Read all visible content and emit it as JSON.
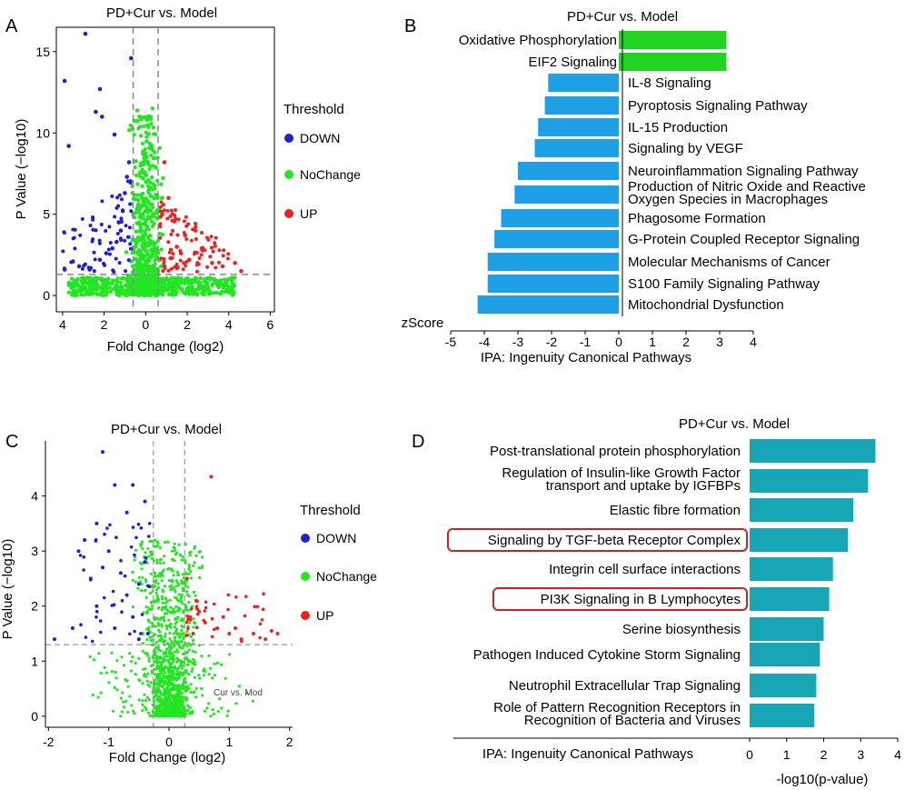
{
  "colors": {
    "down": "#1f1fd6",
    "nochange": "#22e622",
    "up": "#ee2222",
    "ipa_down": "#1e9fe6",
    "ipa_up": "#22d322",
    "teal": "#17a6b5",
    "box": "#cc2222"
  },
  "chart_data": [
    {
      "panel": "A",
      "type": "scatter",
      "title": "PD+Cur vs. Model",
      "xlabel": "Fold Change (log2)",
      "ylabel": "P Value (−log10)",
      "x_display_ticks": [
        "4",
        "2",
        "0",
        "2",
        "4",
        "6"
      ],
      "x_display_range": [
        4.3,
        6.2
      ],
      "ylim": [
        -1,
        16.5
      ],
      "y_ticks": [
        0,
        5,
        10,
        15
      ],
      "x_threshold_lines": [
        -0.6,
        0.6
      ],
      "y_threshold": 1.3,
      "legend_title": "Threshold",
      "legend_labels": [
        "DOWN",
        "NoChange",
        "UP"
      ],
      "series": [
        {
          "name": "DOWN",
          "points": [
            [
              -3.9,
              13.2
            ],
            [
              -3.7,
              9.2
            ],
            [
              -2.9,
              16.1
            ],
            [
              -2.2,
              12.7
            ],
            [
              -2.4,
              11.3
            ],
            [
              -2.1,
              11.0
            ],
            [
              -3.5,
              2.1
            ],
            [
              -3.9,
              1.6
            ],
            [
              -3.2,
              1.8
            ],
            [
              -2.7,
              1.6
            ],
            [
              -2.2,
              2.2
            ],
            [
              -1.9,
              2.6
            ],
            [
              -1.6,
              2.9
            ],
            [
              -1.4,
              3.3
            ],
            [
              -1.2,
              4.0
            ],
            [
              -1.3,
              4.5
            ],
            [
              -1.1,
              5.2
            ],
            [
              -1.0,
              6.3
            ],
            [
              -0.9,
              7.3
            ],
            [
              -0.8,
              8.2
            ],
            [
              -1.5,
              9.9
            ],
            [
              -0.7,
              14.6
            ]
          ]
        },
        {
          "name": "UP",
          "points": [
            [
              0.9,
              1.8
            ],
            [
              1.2,
              2.3
            ],
            [
              1.5,
              3.0
            ],
            [
              1.9,
              3.7
            ],
            [
              2.4,
              4.0
            ],
            [
              0.8,
              5.0
            ],
            [
              1.1,
              6.0
            ],
            [
              0.9,
              8.2
            ],
            [
              1.4,
              4.6
            ],
            [
              2.7,
              2.9
            ],
            [
              3.2,
              2.0
            ],
            [
              3.7,
              1.8
            ],
            [
              4.3,
              2.0
            ],
            [
              4.6,
              1.5
            ],
            [
              2.1,
              2.2
            ],
            [
              1.7,
              2.6
            ]
          ]
        }
      ]
    },
    {
      "panel": "B",
      "type": "bar",
      "title": "PD+Cur vs. Model",
      "orientation": "horizontal",
      "categories": [
        "Oxidative Phosphorylation",
        "EIF2 Signaling",
        "IL-8 Signaling",
        "Pyroptosis Signaling Pathway",
        "IL-15 Production",
        "Signaling by VEGF",
        "Neuroinflammation Signaling Pathway",
        "Production of Nitric Oxide and Reactive Oxygen Species in Macrophages",
        "Phagosome Formation",
        "G-Protein Coupled Receptor Signaling",
        "Molecular Mechanisms of Cancer",
        "S100 Family Signaling Pathway",
        "Mitochondrial Dysfunction"
      ],
      "label_lines": [
        [
          "Oxidative Phosphorylation"
        ],
        [
          "EIF2 Signaling"
        ],
        [
          "IL-8 Signaling"
        ],
        [
          "Pyroptosis Signaling Pathway"
        ],
        [
          "IL-15 Production"
        ],
        [
          "Signaling by VEGF"
        ],
        [
          "Neuroinflammation Signaling Pathway"
        ],
        [
          "Production of Nitric Oxide and Reactive",
          "Oxygen Species in Macrophages"
        ],
        [
          "Phagosome Formation"
        ],
        [
          "G-Protein Coupled Receptor Signaling"
        ],
        [
          "Molecular Mechanisms of Cancer"
        ],
        [
          "S100 Family Signaling Pathway"
        ],
        [
          "Mitochondrial Dysfunction"
        ]
      ],
      "values": [
        3.2,
        3.2,
        -2.1,
        -2.2,
        -2.4,
        -2.5,
        -3.0,
        -3.1,
        -3.5,
        -3.7,
        -3.9,
        -3.9,
        -4.2
      ],
      "xlim": [
        -5,
        4
      ],
      "x_ticks": [
        -5,
        -4,
        -3,
        -2,
        -1,
        0,
        1,
        2,
        3,
        4
      ],
      "axis_title": "zScore",
      "xlabel": "IPA: Ingenuity Canonical Pathways"
    },
    {
      "panel": "C",
      "type": "scatter",
      "title": "PD+Cur vs. Model",
      "xlabel": "Fold Change (log2)",
      "ylabel": "P Value (−log10)",
      "xlim": [
        -2.05,
        2.05
      ],
      "ylim": [
        -0.2,
        5.0
      ],
      "x_ticks": [
        -2,
        -1,
        0,
        1,
        2
      ],
      "y_ticks": [
        0,
        1,
        2,
        3,
        4
      ],
      "x_threshold_lines": [
        -0.26,
        0.26
      ],
      "y_threshold": 1.3,
      "annotation": "Cur vs. Mod",
      "legend_title": "Threshold",
      "legend_labels": [
        "DOWN",
        "NoChange",
        "UP"
      ],
      "series": [
        {
          "name": "DOWN",
          "points": [
            [
              -1.1,
              4.8
            ],
            [
              -0.9,
              4.2
            ],
            [
              -0.6,
              4.2
            ],
            [
              -0.7,
              3.7
            ],
            [
              -0.4,
              3.9
            ],
            [
              -1.2,
              3.5
            ],
            [
              -1.4,
              3.2
            ],
            [
              -1.5,
              3.0
            ],
            [
              -1.0,
              3.0
            ],
            [
              -1.1,
              2.7
            ],
            [
              -0.8,
              2.6
            ],
            [
              -0.5,
              2.4
            ],
            [
              -0.7,
              2.2
            ],
            [
              -1.2,
              2.0
            ],
            [
              -1.6,
              1.6
            ],
            [
              -1.9,
              1.4
            ],
            [
              -0.9,
              1.6
            ],
            [
              -0.6,
              1.8
            ],
            [
              -1.3,
              2.5
            ],
            [
              -0.4,
              2.8
            ],
            [
              -0.35,
              1.5
            ],
            [
              -0.5,
              1.4
            ]
          ]
        },
        {
          "name": "UP",
          "points": [
            [
              0.7,
              4.35
            ],
            [
              0.3,
              2.5
            ],
            [
              0.45,
              2.1
            ],
            [
              0.5,
              1.9
            ],
            [
              0.6,
              1.7
            ],
            [
              0.8,
              1.6
            ],
            [
              1.0,
              1.5
            ],
            [
              1.2,
              1.4
            ],
            [
              1.4,
              1.5
            ],
            [
              1.6,
              1.4
            ],
            [
              1.7,
              1.55
            ],
            [
              1.8,
              1.5
            ],
            [
              0.35,
              1.8
            ],
            [
              0.9,
              1.8
            ],
            [
              1.1,
              1.6
            ],
            [
              0.4,
              1.5
            ]
          ]
        }
      ]
    },
    {
      "panel": "D",
      "type": "bar",
      "title": "PD+Cur vs. Model",
      "orientation": "horizontal",
      "categories": [
        "Post-translational protein phosphorylation",
        "Regulation of Insulin-like Growth Factor transport and uptake by IGFBPs",
        "Elastic fibre formation",
        "Signaling by TGF-beta Receptor Complex",
        "Integrin cell surface interactions",
        "PI3K Signaling in B Lymphocytes",
        "Serine biosynthesis",
        "Pathogen Induced Cytokine Storm Signaling",
        "Neutrophil Extracellular Trap Signaling",
        "Role of Pattern Recognition Receptors in Recognition of Bacteria and Viruses"
      ],
      "label_lines": [
        [
          "Post-translational protein phosphorylation"
        ],
        [
          "Regulation of Insulin-like Growth Factor",
          "transport and uptake by IGFBPs"
        ],
        [
          "Elastic fibre formation"
        ],
        [
          "Signaling by TGF-beta Receptor Complex"
        ],
        [
          "Integrin cell surface interactions"
        ],
        [
          "PI3K Signaling in B Lymphocytes"
        ],
        [
          "Serine biosynthesis"
        ],
        [
          "Pathogen Induced Cytokine Storm Signaling"
        ],
        [
          "Neutrophil Extracellular Trap Signaling"
        ],
        [
          "Role of Pattern Recognition Receptors in",
          "Recognition of Bacteria and Viruses"
        ]
      ],
      "values": [
        3.4,
        3.2,
        2.8,
        2.65,
        2.25,
        2.15,
        2.0,
        1.9,
        1.8,
        1.75
      ],
      "highlighted": [
        "Signaling by TGF-beta Receptor Complex",
        "PI3K Signaling in B Lymphocytes"
      ],
      "xlim": [
        0,
        4
      ],
      "x_ticks": [
        0,
        1,
        2,
        3,
        4
      ],
      "xlabel": "-log10(p-value)",
      "category_axis_label": "IPA: Ingenuity Canonical Pathways"
    }
  ],
  "panel_labels": [
    "A",
    "B",
    "C",
    "D"
  ]
}
